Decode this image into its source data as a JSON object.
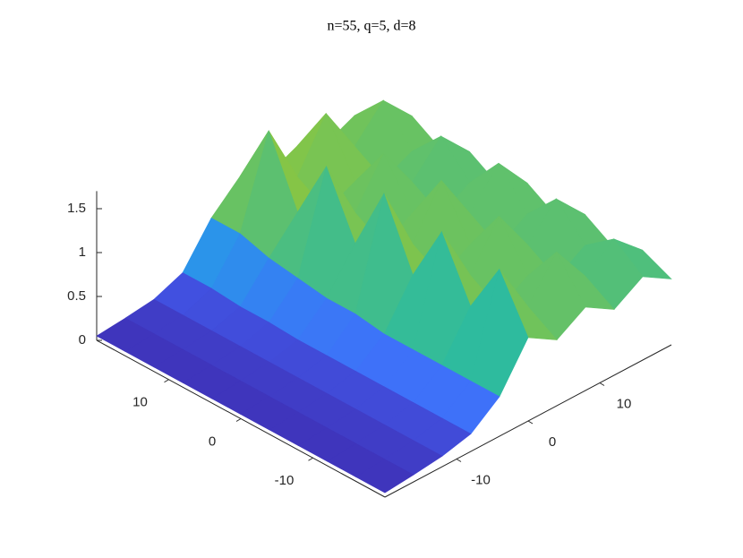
{
  "chart_data": {
    "type": "surface",
    "title": "n=55, q=5, d=8",
    "x": [
      -20,
      -16,
      -12,
      -8,
      -4,
      0,
      4,
      8,
      12,
      16,
      20
    ],
    "y": [
      -20,
      -16,
      -12,
      -8,
      -4,
      0,
      4,
      8,
      12,
      16,
      20
    ],
    "z": [
      [
        0.05,
        0.08,
        0.12,
        0.2,
        0.45,
        0.95,
        0.75,
        0.95,
        0.75,
        0.95,
        0.75
      ],
      [
        0.05,
        0.08,
        0.12,
        0.2,
        0.45,
        1.55,
        0.95,
        1.4,
        0.95,
        1.2,
        0.9
      ],
      [
        0.05,
        0.08,
        0.12,
        0.2,
        0.45,
        0.95,
        0.75,
        0.95,
        0.75,
        0.95,
        0.75
      ],
      [
        0.05,
        0.08,
        0.12,
        0.2,
        0.45,
        1.62,
        0.95,
        1.45,
        0.95,
        1.3,
        0.95
      ],
      [
        0.05,
        0.08,
        0.12,
        0.2,
        0.45,
        0.95,
        0.75,
        0.95,
        0.75,
        0.95,
        0.75
      ],
      [
        0.05,
        0.08,
        0.12,
        0.2,
        0.5,
        1.7,
        0.95,
        1.5,
        0.95,
        1.35,
        0.95
      ],
      [
        0.05,
        0.08,
        0.12,
        0.2,
        0.5,
        0.95,
        0.75,
        0.95,
        0.75,
        0.95,
        0.75
      ],
      [
        0.05,
        0.08,
        0.12,
        0.22,
        0.55,
        1.65,
        0.95,
        1.45,
        0.95,
        1.3,
        0.95
      ],
      [
        0.05,
        0.08,
        0.12,
        0.22,
        0.6,
        0.95,
        0.8,
        0.95,
        0.8,
        0.95,
        0.8
      ],
      [
        0.05,
        0.08,
        0.12,
        0.25,
        0.7,
        1.7,
        1.0,
        1.55,
        1.0,
        1.35,
        1.0
      ],
      [
        0.05,
        0.08,
        0.12,
        0.25,
        0.7,
        1.0,
        0.85,
        1.0,
        0.85,
        1.0,
        0.75
      ]
    ],
    "xlim": [
      -20,
      20
    ],
    "ylim": [
      -20,
      20
    ],
    "zlim": [
      0,
      1.7
    ],
    "xticks": [
      -10,
      0,
      10
    ],
    "yticks": [
      -10,
      0,
      10
    ],
    "zticks": [
      0,
      0.5,
      1,
      1.5
    ],
    "colormap": [
      "#3e26a8",
      "#4367fd",
      "#1fa9e1",
      "#2ebb9e",
      "#8cc63f",
      "#f1b93a",
      "#f9fb0e"
    ]
  }
}
